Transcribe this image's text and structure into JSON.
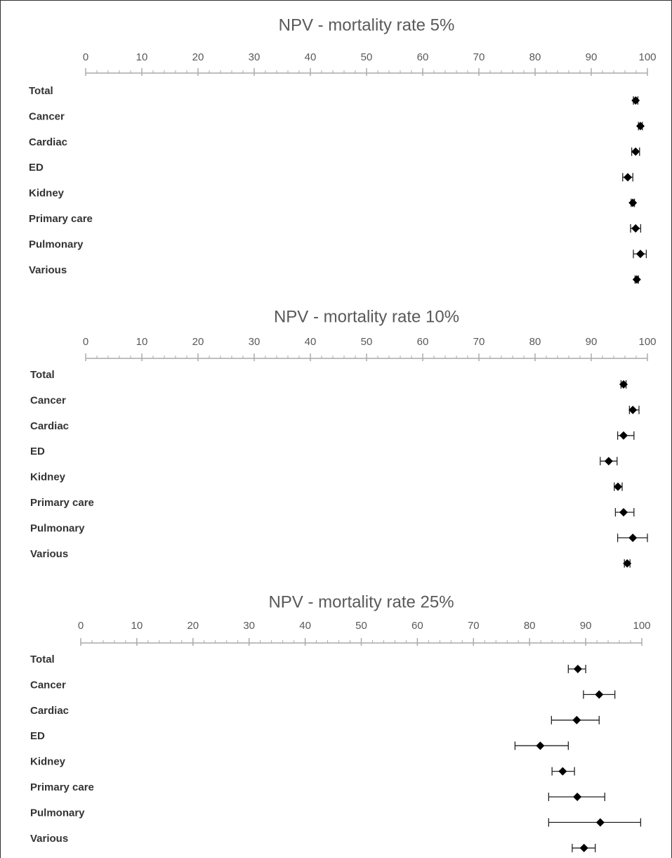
{
  "chart_data": [
    {
      "type": "forest",
      "title": "NPV - mortality rate 5%",
      "color": "#000000",
      "categories": [
        "Total",
        "Cancer",
        "Cardiac",
        "ED",
        "Kidney",
        "Primary care",
        "Pulmonary",
        "Various"
      ],
      "values": [
        97.9,
        98.75,
        97.9,
        96.5,
        97.4,
        97.9,
        98.75,
        98.1
      ],
      "lower": [
        97.5,
        98.4,
        97.2,
        95.6,
        97.1,
        97.0,
        97.5,
        97.8
      ],
      "upper": [
        98.3,
        99.1,
        98.6,
        97.4,
        97.7,
        98.8,
        99.8,
        98.4
      ],
      "xlim": [
        0,
        100
      ],
      "xticks": [
        0,
        10,
        20,
        30,
        40,
        50,
        60,
        70,
        80,
        90,
        100
      ]
    },
    {
      "type": "forest",
      "title": "NPV - mortality rate 10%",
      "color": "#000000",
      "categories": [
        "Total",
        "Cancer",
        "Cardiac",
        "ED",
        "Kidney",
        "Primary care",
        "Pulmonary",
        "Various"
      ],
      "values": [
        95.75,
        97.4,
        95.75,
        93.1,
        94.75,
        95.75,
        97.4,
        96.4
      ],
      "lower": [
        95.3,
        96.8,
        94.7,
        91.6,
        94.1,
        94.3,
        94.7,
        95.9
      ],
      "upper": [
        96.2,
        98.5,
        97.6,
        94.6,
        95.5,
        97.6,
        100,
        96.9
      ],
      "xlim": [
        0,
        100
      ],
      "xticks": [
        0,
        10,
        20,
        30,
        40,
        50,
        60,
        70,
        80,
        90,
        100
      ]
    },
    {
      "type": "forest",
      "title": "NPV - mortality rate 25%",
      "color": "#000000",
      "categories": [
        "Total",
        "Cancer",
        "Cardiac",
        "ED",
        "Kidney",
        "Primary care",
        "Pulmonary",
        "Various"
      ],
      "values": [
        88.6,
        92.4,
        88.4,
        81.9,
        85.9,
        88.5,
        92.6,
        89.7
      ],
      "lower": [
        86.9,
        89.6,
        83.9,
        77.4,
        84.0,
        83.4,
        83.4,
        87.6
      ],
      "upper": [
        90.0,
        95.2,
        92.4,
        86.9,
        88.0,
        93.4,
        99.8,
        91.7
      ],
      "xlim": [
        0,
        100
      ],
      "xticks": [
        0,
        10,
        20,
        30,
        40,
        50,
        60,
        70,
        80,
        90,
        100
      ]
    }
  ]
}
